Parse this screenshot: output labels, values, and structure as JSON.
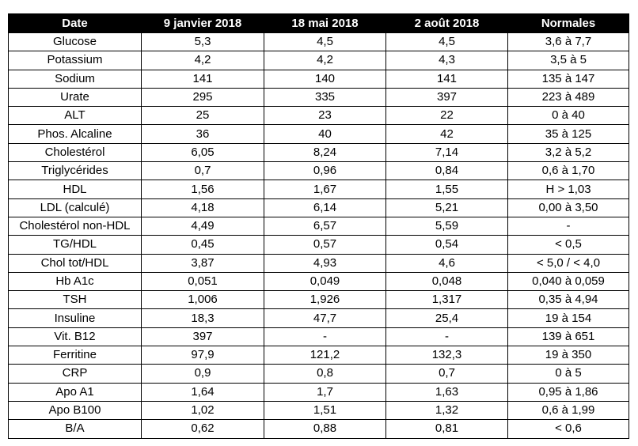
{
  "table": {
    "headers": [
      "Date",
      "9 janvier 2018",
      "18 mai 2018",
      "2 août 2018",
      "Normales"
    ],
    "rows": [
      [
        "Glucose",
        "5,3",
        "4,5",
        "4,5",
        "3,6 à 7,7"
      ],
      [
        "Potassium",
        "4,2",
        "4,2",
        "4,3",
        "3,5 à 5"
      ],
      [
        "Sodium",
        "141",
        "140",
        "141",
        "135 à 147"
      ],
      [
        "Urate",
        "295",
        "335",
        "397",
        "223 à 489"
      ],
      [
        "ALT",
        "25",
        "23",
        "22",
        "0 à 40"
      ],
      [
        "Phos. Alcaline",
        "36",
        "40",
        "42",
        "35 à 125"
      ],
      [
        "Cholestérol",
        "6,05",
        "8,24",
        "7,14",
        "3,2 à 5,2"
      ],
      [
        "Triglycérides",
        "0,7",
        "0,96",
        "0,84",
        "0,6 à 1,70"
      ],
      [
        "HDL",
        "1,56",
        "1,67",
        "1,55",
        "H > 1,03"
      ],
      [
        "LDL (calculé)",
        "4,18",
        "6,14",
        "5,21",
        "0,00 à 3,50"
      ],
      [
        "Cholestérol non-HDL",
        "4,49",
        "6,57",
        "5,59",
        "-"
      ],
      [
        "TG/HDL",
        "0,45",
        "0,57",
        "0,54",
        "< 0,5"
      ],
      [
        "Chol tot/HDL",
        "3,87",
        "4,93",
        "4,6",
        "< 5,0 / < 4,0"
      ],
      [
        "Hb A1c",
        "0,051",
        "0,049",
        "0,048",
        "0,040 à 0,059"
      ],
      [
        "TSH",
        "1,006",
        "1,926",
        "1,317",
        "0,35 à 4,94"
      ],
      [
        "Insuline",
        "18,3",
        "47,7",
        "25,4",
        "19 à 154"
      ],
      [
        "Vit. B12",
        "397",
        "-",
        "-",
        "139 à 651"
      ],
      [
        "Ferritine",
        "97,9",
        "121,2",
        "132,3",
        "19 à 350"
      ],
      [
        "CRP",
        "0,9",
        "0,8",
        "0,7",
        "0 à 5"
      ],
      [
        "Apo A1",
        "1,64",
        "1,7",
        "1,63",
        "0,95 à 1,86"
      ],
      [
        "Apo B100",
        "1,02",
        "1,51",
        "1,32",
        "0,6 à 1,99"
      ],
      [
        "B/A",
        "0,62",
        "0,88",
        "0,81",
        "< 0,6"
      ]
    ]
  }
}
